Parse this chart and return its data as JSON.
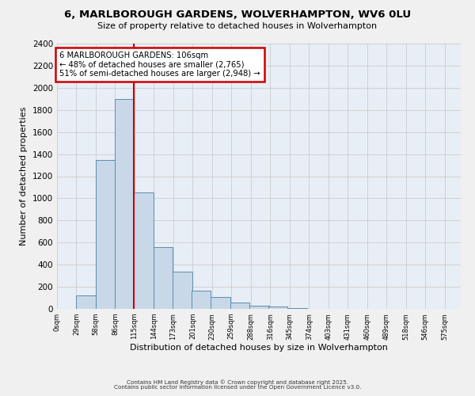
{
  "title": "6, MARLBOROUGH GARDENS, WOLVERHAMPTON, WV6 0LU",
  "subtitle": "Size of property relative to detached houses in Wolverhampton",
  "xlabel": "Distribution of detached houses by size in Wolverhampton",
  "ylabel": "Number of detached properties",
  "bar_left_edges": [
    0,
    29,
    58,
    86,
    115,
    144,
    173,
    201,
    230,
    259,
    288,
    316,
    345,
    374,
    403,
    431,
    460,
    489,
    518,
    546
  ],
  "bar_heights": [
    0,
    125,
    1350,
    1900,
    1050,
    560,
    335,
    165,
    105,
    60,
    30,
    20,
    5,
    0,
    0,
    0,
    0,
    0,
    0,
    0
  ],
  "bin_width": 29,
  "bar_color": "#c8d8e8",
  "bar_edge_color": "#5b8db0",
  "grid_color": "#cccccc",
  "plot_bg_color": "#e8eef5",
  "vline_x": 115,
  "vline_color": "#cc0000",
  "annotation_title": "6 MARLBOROUGH GARDENS: 106sqm",
  "annotation_line1": "← 48% of detached houses are smaller (2,765)",
  "annotation_line2": "51% of semi-detached houses are larger (2,948) →",
  "annotation_box_color": "#ffffff",
  "annotation_box_edge": "#cc0000",
  "xtick_labels": [
    "0sqm",
    "29sqm",
    "58sqm",
    "86sqm",
    "115sqm",
    "144sqm",
    "173sqm",
    "201sqm",
    "230sqm",
    "259sqm",
    "288sqm",
    "316sqm",
    "345sqm",
    "374sqm",
    "403sqm",
    "431sqm",
    "460sqm",
    "489sqm",
    "518sqm",
    "546sqm",
    "575sqm"
  ],
  "ylim": [
    0,
    2400
  ],
  "yticks": [
    0,
    200,
    400,
    600,
    800,
    1000,
    1200,
    1400,
    1600,
    1800,
    2000,
    2200,
    2400
  ],
  "footnote1": "Contains HM Land Registry data © Crown copyright and database right 2025.",
  "footnote2": "Contains public sector information licensed under the Open Government Licence v3.0.",
  "fig_bg_color": "#f0f0f0"
}
